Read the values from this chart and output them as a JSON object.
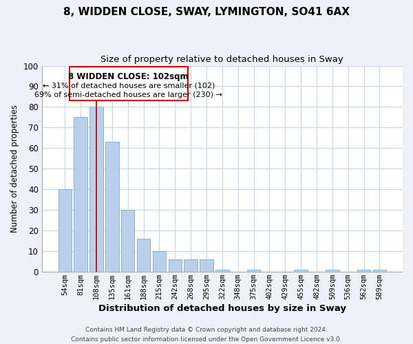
{
  "title1": "8, WIDDEN CLOSE, SWAY, LYMINGTON, SO41 6AX",
  "title2": "Size of property relative to detached houses in Sway",
  "xlabel": "Distribution of detached houses by size in Sway",
  "ylabel": "Number of detached properties",
  "bar_labels": [
    "54sqm",
    "81sqm",
    "108sqm",
    "135sqm",
    "161sqm",
    "188sqm",
    "215sqm",
    "242sqm",
    "268sqm",
    "295sqm",
    "322sqm",
    "348sqm",
    "375sqm",
    "402sqm",
    "429sqm",
    "455sqm",
    "482sqm",
    "509sqm",
    "536sqm",
    "562sqm",
    "589sqm"
  ],
  "bar_values": [
    40,
    75,
    80,
    63,
    30,
    16,
    10,
    6,
    6,
    6,
    1,
    0,
    1,
    0,
    0,
    1,
    0,
    1,
    0,
    1,
    1
  ],
  "bar_color": "#b8d0e8",
  "bar_edge_color": "#8ab4d4",
  "vline_x_index": 2,
  "vline_color": "#cc0000",
  "ann_line1": "8 WIDDEN CLOSE: 102sqm",
  "ann_line2": "← 31% of detached houses are smaller (102)",
  "ann_line3": "69% of semi-detached houses are larger (230) →",
  "ann_edgecolor": "#cc0000",
  "ylim": [
    0,
    100
  ],
  "yticks": [
    0,
    10,
    20,
    30,
    40,
    50,
    60,
    70,
    80,
    90,
    100
  ],
  "footer": "Contains HM Land Registry data © Crown copyright and database right 2024.\nContains public sector information licensed under the Open Government Licence v3.0.",
  "bg_color": "#eef2f8",
  "plot_bg_color": "#ffffff",
  "grid_color": "#c5d5e8"
}
